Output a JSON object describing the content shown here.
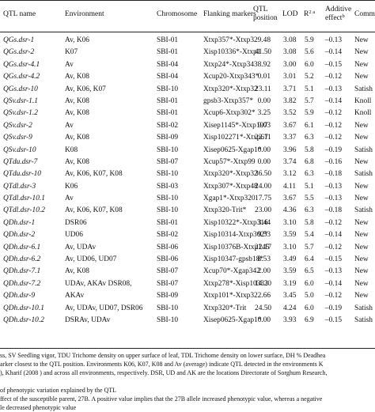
{
  "header": {
    "qtl_name": "QTL name",
    "environment": "Environment",
    "chromosome": "Chromosome",
    "flanking": "Flanking markers",
    "qtl_position_l1": "QTL",
    "qtl_position_l2": "position",
    "lod": "LOD",
    "r2": "R",
    "r2_sup": "2 a",
    "additive_l1": "Additive",
    "additive_l2": "effect",
    "additive_sup": "b",
    "comment": "Comm"
  },
  "rows": [
    {
      "name": "QGs.dsr-1",
      "env": "Av, K06",
      "chr": "SBI-01",
      "flank": "Xtxp357*-Xtxp32",
      "pos": "9.48",
      "lod": "3.08",
      "r2": "5.9",
      "eff": "–0.13",
      "comment": "New"
    },
    {
      "name": "QGs.dsr-2",
      "env": "K07",
      "chr": "SBI-01",
      "flank": "Xisp10336*-Xtxp1",
      "pos": "41.50",
      "lod": "3.08",
      "r2": "5.6",
      "eff": "–0.14",
      "comment": "New"
    },
    {
      "name": "QGs.dsr-4.1",
      "env": "Av",
      "chr": "SBI-04",
      "flank": "Xtxp24*-Xtxp343",
      "pos": "8.92",
      "lod": "3.00",
      "r2": "6.0",
      "eff": "–0.15",
      "comment": "New"
    },
    {
      "name": "QGs.dsr-4.2",
      "env": "Av, K08",
      "chr": "SBI-04",
      "flank": "Xcup20-Xtxp343*",
      "pos": "0.01",
      "lod": "3.01",
      "r2": "5.2",
      "eff": "–0.12",
      "comment": "New"
    },
    {
      "name": "QGs.dsr-10",
      "env": "Av, K06, K07",
      "chr": "SBI-10",
      "flank": "Xtxp320*-Xtxp32",
      "pos": "23.11",
      "lod": "3.71",
      "r2": "5.1",
      "eff": "–0.13",
      "comment": "Satish"
    },
    {
      "name": "QSv.dsr-1.1",
      "env": "Av, K08",
      "chr": "SBI-01",
      "flank": "gpsb3-Xtxp357*",
      "pos": "0.00",
      "lod": "3.82",
      "r2": "5.7",
      "eff": "–0.14",
      "comment": "Knoll"
    },
    {
      "name": "QSv.dsr-1.2",
      "env": "Av, K08",
      "chr": "SBI-01",
      "flank": "Xcup6-Xtxp302*",
      "pos": "3.25",
      "lod": "3.52",
      "r2": "5.9",
      "eff": "–0.12",
      "comment": "Knoll"
    },
    {
      "name": "QSv.dsr-2",
      "env": "Av",
      "chr": "SBI-02",
      "flank": "Xisep1145*-Xtxp197",
      "pos": "9.03",
      "lod": "3.67",
      "r2": "6.1",
      "eff": "–0.12",
      "comment": "New"
    },
    {
      "name": "QSv.dsr-9",
      "env": "Av, K08",
      "chr": "SBI-09",
      "flank": "Xisp102271*-Xtxp67",
      "pos": "22.11",
      "lod": "3.37",
      "r2": "6.3",
      "eff": "–0.12",
      "comment": "New"
    },
    {
      "name": "QSv.dsr-10",
      "env": "K08",
      "chr": "SBI-10",
      "flank": "Xisep0625-Xgap1*",
      "pos": "0.00",
      "lod": "3.96",
      "r2": "5.8",
      "eff": "–0.19",
      "comment": "Satish"
    },
    {
      "name": "QTdu.dsr-7",
      "env": "Av, K08",
      "chr": "SBI-07",
      "flank": "Xcup57*-Xtxp99",
      "pos": "0.00",
      "lod": "3.74",
      "r2": "6.8",
      "eff": "–0.16",
      "comment": "New"
    },
    {
      "name": "QTdu.dsr-10",
      "env": "Av, K06, K07, K08",
      "chr": "SBI-10",
      "flank": "Xtxp320*-Xtxp32",
      "pos": "36.50",
      "lod": "3.12",
      "r2": "6.3",
      "eff": "–0.18",
      "comment": "Satish"
    },
    {
      "name": "QTdl.dsr-3",
      "env": "K06",
      "chr": "SBI-03",
      "flank": "Xtxp307*-Xtxp48",
      "pos": "24.00",
      "lod": "4.11",
      "r2": "5.1",
      "eff": "–0.13",
      "comment": "New"
    },
    {
      "name": "QTdl.dsr-10.1",
      "env": "Av",
      "chr": "SBI-10",
      "flank": "Xgap1*-Xtxp320",
      "pos": "17.75",
      "lod": "3.67",
      "r2": "5.5",
      "eff": "–0.13",
      "comment": "New"
    },
    {
      "name": "QTdl.dsr-10.2",
      "env": "Av, K06, K07, K08",
      "chr": "SBI-10",
      "flank": "Xtxp320-Trit*",
      "pos": "23.00",
      "lod": "4.36",
      "r2": "6.3",
      "eff": "–0.18",
      "comment": "Satish"
    },
    {
      "name": "QDh.dsr-1",
      "env": "DSR06",
      "chr": "SBI-01",
      "flank": "Xisp10322*-Xtxp316",
      "pos": "3.44",
      "lod": "3.10",
      "r2": "5.8",
      "eff": "–0.12",
      "comment": "New"
    },
    {
      "name": "QDh.dsr-2",
      "env": "UD06",
      "chr": "SBI-02",
      "flank": "Xisp10314-Xtxp302*",
      "pos": "9.53",
      "lod": "3.59",
      "r2": "5.4",
      "eff": "–0.14",
      "comment": "New"
    },
    {
      "name": "QDh.dsr-6.1",
      "env": "Av, UDAv",
      "chr": "SBI-06",
      "flank": "Xisp10376B-Xtxp145",
      "pos": "22.17",
      "lod": "3.10",
      "r2": "5.7",
      "eff": "–0.12",
      "comment": "New"
    },
    {
      "name": "QDh.dsr-6.2",
      "env": "Av, UD06, UD07",
      "chr": "SBI-06",
      "flank": "Xisp10347-gpsb18*",
      "pos": "8.53",
      "lod": "3.49",
      "r2": "6.4",
      "eff": "–0.15",
      "comment": "New"
    },
    {
      "name": "QDh.dsr-7.1",
      "env": "Av, K08",
      "chr": "SBI-07",
      "flank": "Xcup70*-Xgap342",
      "pos": "2.00",
      "lod": "3.59",
      "r2": "6.5",
      "eff": "–0.13",
      "comment": "New"
    },
    {
      "name": "QDh.dsr-7.2",
      "env": "UDAv, AKAv DSR08,",
      "chr": "SBI-07",
      "flank": "Xtxp278*-Xisp10333",
      "pos": "14.20",
      "lod": "3.19",
      "r2": "6.0",
      "eff": "–0.14",
      "comment": "New"
    },
    {
      "name": "QDh.dsr-9",
      "env": "AKAv",
      "chr": "SBI-09",
      "flank": "Xtxp101*-Xtxp32",
      "pos": "2.66",
      "lod": "3.45",
      "r2": "5.0",
      "eff": "–0.12",
      "comment": "New"
    },
    {
      "name": "QDh.dsr-10.1",
      "env": "Av, UDAv, UD07, DSR06",
      "chr": "SBI-10",
      "flank": "Xtxp320*-Trit",
      "pos": "24.50",
      "lod": "4.24",
      "r2": "6.0",
      "eff": "–0.19",
      "comment": "Satish"
    },
    {
      "name": "QDh.dsr-10.2",
      "env": "DSRAv, UDAv",
      "chr": "SBI-10",
      "flank": "Xisep0625-Xgap1*",
      "pos": "0.00",
      "lod": "3.93",
      "r2": "6.9",
      "eff": "–0.15",
      "comment": "Satish"
    }
  ],
  "footnotes": [
    "ss, SV Seedling vigor, TDU Trichome density on upper surface of leaf, TDL Trichome density on lower surface, DH % Deadhea",
    "arker closest to the QTL position. Environments K06, K07, K08 and Av (average) indicate QTL detected in the environments K",
    "), Kharif (2008 ) and across all environments, respectively. DSR, UD and AK are the locations Directorate of Sorghum Research,",
    "",
    "of phenotypic variation explained by the QTL",
    "ffect of the susceptible parent, 27B. A positive value implies that the 27B allele increased phenotypic value, whereas a negative",
    "le decreased phenotypic value"
  ]
}
